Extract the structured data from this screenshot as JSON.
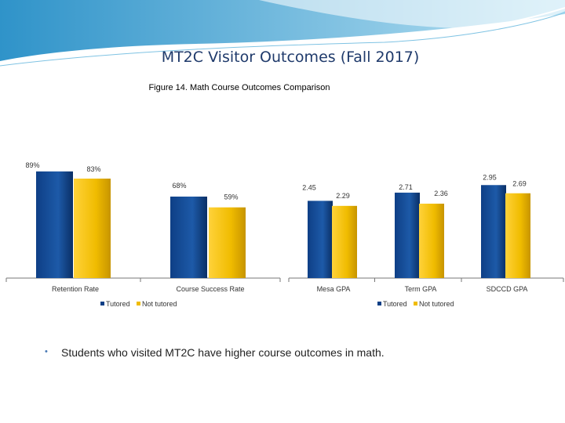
{
  "slide": {
    "title": "MT2C Visitor Outcomes (Fall 2017)",
    "subtitle": "Figure 14.  Math Course Outcomes Comparison",
    "bullet_text": "Students who visited MT2C have higher course outcomes in math."
  },
  "colors": {
    "tutored": "#0e3f86",
    "not_tutored": "#f0bc00",
    "accent": "#5ab4dc"
  },
  "chart_data": [
    {
      "type": "bar",
      "categories": [
        "Retention Rate",
        "Course Success Rate"
      ],
      "series": [
        {
          "name": "Tutored",
          "values": [
            89,
            68
          ],
          "labels": [
            "89%",
            "68%"
          ]
        },
        {
          "name": "Not tutored",
          "values": [
            83,
            59
          ],
          "labels": [
            "83%",
            "59%"
          ]
        }
      ],
      "ylim": [
        0,
        100
      ],
      "legend": "bottom"
    },
    {
      "type": "bar",
      "categories": [
        "Mesa GPA",
        "Term GPA",
        "SDCCD GPA"
      ],
      "series": [
        {
          "name": "Tutored",
          "values": [
            2.45,
            2.71,
            2.95
          ],
          "labels": [
            "2.45",
            "2.71",
            "2.95"
          ]
        },
        {
          "name": "Not tutored",
          "values": [
            2.29,
            2.36,
            2.69
          ],
          "labels": [
            "2.29",
            "2.36",
            "2.69"
          ]
        }
      ],
      "ylim": [
        0,
        4
      ],
      "legend": "bottom"
    }
  ]
}
